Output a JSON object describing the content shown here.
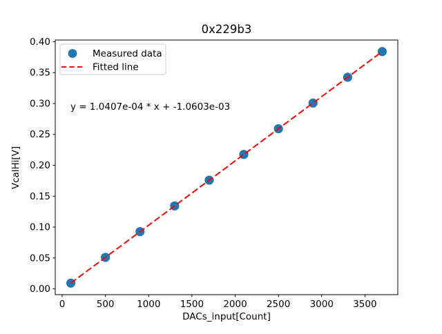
{
  "chart_data": {
    "type": "scatter",
    "title": "0x229b3",
    "xlabel": "DACs_input[Count]",
    "ylabel": "VcalHi[V]",
    "xlim": [
      -80,
      3880
    ],
    "ylim": [
      -0.0094,
      0.4027
    ],
    "x_ticks": [
      0,
      500,
      1000,
      1500,
      2000,
      2500,
      3000,
      3500
    ],
    "y_ticks": [
      0.0,
      0.05,
      0.1,
      0.15,
      0.2,
      0.25,
      0.3,
      0.35,
      0.4
    ],
    "grid": false,
    "legend_position": "upper left",
    "series": [
      {
        "name": "Measured data",
        "type": "scatter",
        "color": "#1f77b4",
        "x": [
          100,
          500,
          900,
          1300,
          1700,
          2100,
          2500,
          2900,
          3300,
          3700
        ],
        "y": [
          0.0093,
          0.051,
          0.0926,
          0.1342,
          0.1759,
          0.2175,
          0.2591,
          0.3007,
          0.3424,
          0.384
        ]
      },
      {
        "name": "Fitted line",
        "type": "line",
        "linestyle": "dashed",
        "color": "#ff0000",
        "slope": 0.00010407,
        "intercept": -0.0010603,
        "x": [
          100,
          3700
        ],
        "y": [
          0.0093,
          0.384
        ]
      }
    ],
    "annotation": {
      "text": "y = 1.0407e-04 * x + -1.0603e-03",
      "x": 100,
      "y": 0.29
    }
  },
  "colors": {
    "marker": "#1f77b4",
    "line": "#ff0000",
    "axes": "#000000",
    "legend_border": "#cccccc"
  }
}
